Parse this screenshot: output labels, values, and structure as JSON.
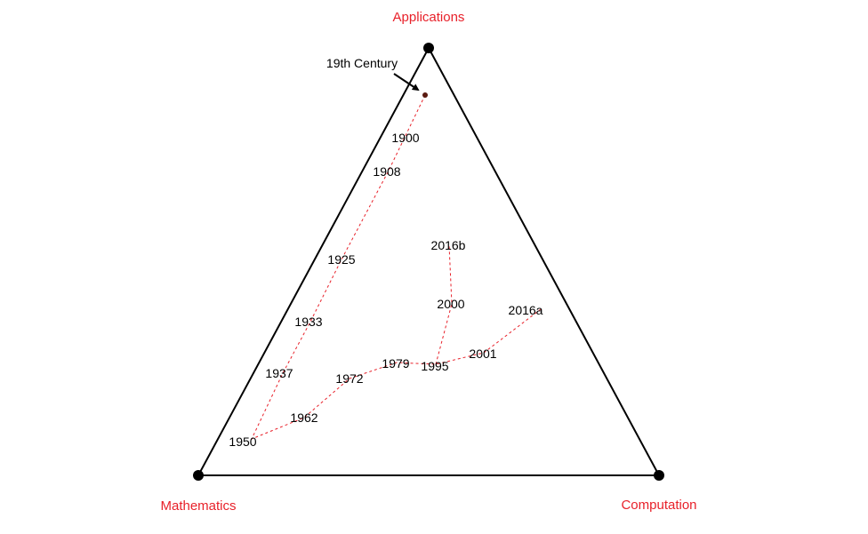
{
  "vertices": {
    "top": {
      "label": "Applications"
    },
    "bottom_left": {
      "label": "Mathematics"
    },
    "bottom_right": {
      "label": "Computation"
    }
  },
  "annotation": {
    "text": "19th Century"
  },
  "timeline_labels": [
    "1900",
    "1908",
    "1925",
    "1933",
    "1937",
    "1950",
    "1962",
    "1972",
    "1979",
    "1995",
    "2001",
    "2016a",
    "2000",
    "2016b"
  ],
  "colors": {
    "vertex_label": "#e8212a",
    "path": "#e8212a",
    "triangle": "#000000",
    "vertex_dot": "#000000",
    "text": "#000000"
  }
}
